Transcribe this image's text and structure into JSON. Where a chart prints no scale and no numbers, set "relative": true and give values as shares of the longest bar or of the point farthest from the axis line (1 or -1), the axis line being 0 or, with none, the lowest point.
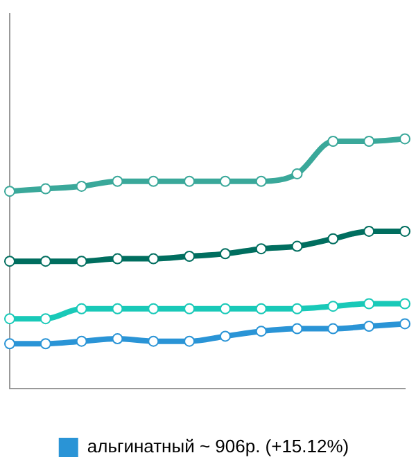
{
  "chart_data": {
    "type": "line",
    "relative": true,
    "categories": [
      null,
      null,
      null,
      null,
      null,
      null,
      null,
      null,
      null,
      null,
      null,
      null
    ],
    "series": [
      {
        "color": "#3aa89a",
        "values": [
          0.79,
          0.8,
          0.81,
          0.83,
          0.83,
          0.83,
          0.83,
          0.83,
          0.86,
          0.99,
          0.99,
          1.0
        ]
      },
      {
        "color": "#006e5f",
        "values": [
          0.51,
          0.51,
          0.51,
          0.52,
          0.52,
          0.53,
          0.54,
          0.56,
          0.57,
          0.6,
          0.63,
          0.63
        ]
      },
      {
        "color": "#19c9b8",
        "values": [
          0.28,
          0.28,
          0.32,
          0.32,
          0.32,
          0.32,
          0.32,
          0.32,
          0.32,
          0.33,
          0.34,
          0.34
        ]
      },
      {
        "name": "альгинатный ~ 906р. (+15.12%)",
        "color": "#2a94d6",
        "values": [
          0.18,
          0.18,
          0.19,
          0.2,
          0.19,
          0.19,
          0.21,
          0.23,
          0.24,
          0.24,
          0.25,
          0.26
        ]
      }
    ],
    "legend": "bottom",
    "marker": "circle",
    "line_style": "solid"
  }
}
